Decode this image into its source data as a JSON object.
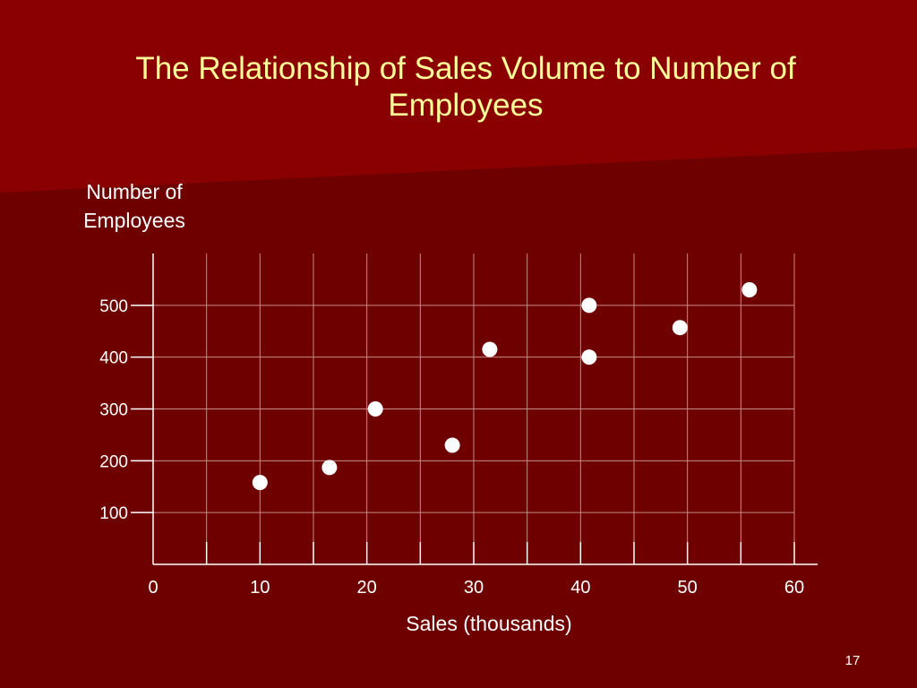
{
  "slide": {
    "title": "The Relationship of Sales Volume to Number of Employees",
    "page_number": "17",
    "colors": {
      "background": "#6e0000",
      "background_light": "#8a0000",
      "title": "#ffff99",
      "text": "#ffffff",
      "grid": "#c98a8a",
      "points": "#ffffff"
    }
  },
  "chart_data": {
    "type": "scatter",
    "title": "The Relationship of Sales Volume to Number of Employees",
    "xlabel": "Sales (thousands)",
    "ylabel": "Number of Employees",
    "xlim": [
      0,
      60
    ],
    "ylim": [
      0,
      600
    ],
    "xticks": [
      0,
      10,
      20,
      30,
      40,
      50,
      60
    ],
    "yticks": [
      100,
      200,
      300,
      400,
      500
    ],
    "grid": true,
    "points": [
      {
        "x": 10,
        "y": 158
      },
      {
        "x": 16.5,
        "y": 187
      },
      {
        "x": 20.8,
        "y": 300
      },
      {
        "x": 28,
        "y": 230
      },
      {
        "x": 31.5,
        "y": 415
      },
      {
        "x": 40.8,
        "y": 500
      },
      {
        "x": 40.8,
        "y": 400
      },
      {
        "x": 49.3,
        "y": 457
      },
      {
        "x": 55.8,
        "y": 530
      }
    ]
  }
}
